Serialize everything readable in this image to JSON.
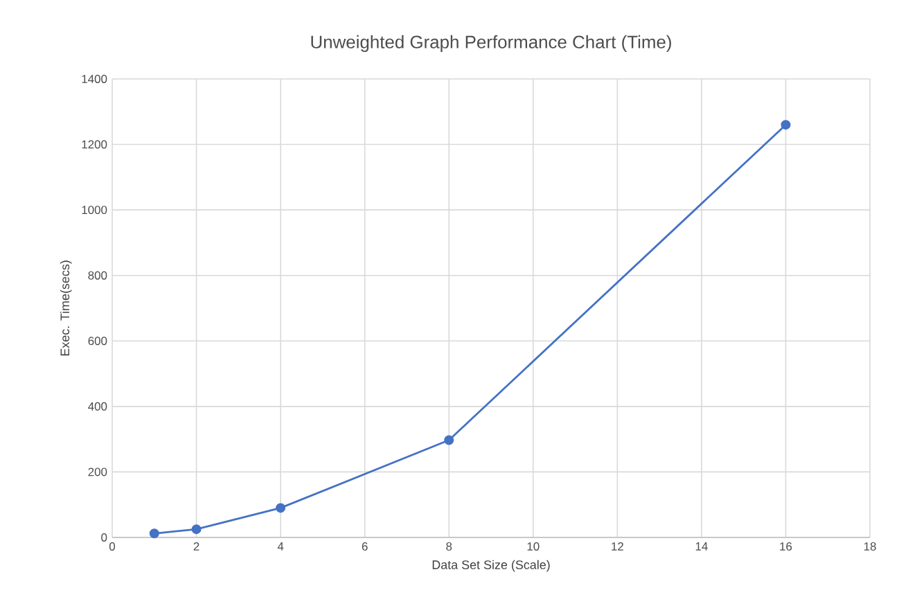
{
  "chart_data": {
    "type": "line",
    "title": "Unweighted Graph Performance Chart (Time)",
    "xlabel": "Data Set Size (Scale)",
    "ylabel": "Exec. Time(secs)",
    "x": [
      1,
      2,
      4,
      8,
      16
    ],
    "series": [
      {
        "color": "#4472c4",
        "values": [
          12,
          25,
          90,
          297,
          1260
        ]
      }
    ],
    "xlim": [
      0,
      18
    ],
    "xticks": [
      0,
      2,
      4,
      6,
      8,
      10,
      12,
      14,
      16,
      18
    ],
    "ylim": [
      0,
      1400
    ],
    "yticks": [
      0,
      200,
      400,
      600,
      800,
      1000,
      1200,
      1400
    ],
    "grid": true,
    "marker": "circle",
    "line_style": "solid"
  }
}
